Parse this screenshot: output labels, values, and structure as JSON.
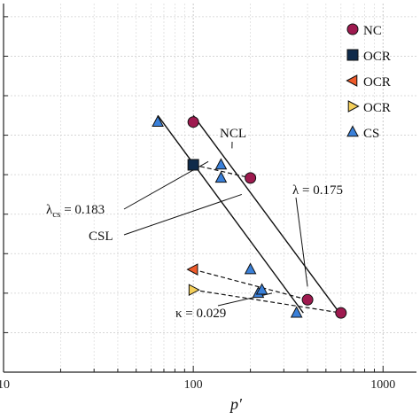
{
  "chart_data": {
    "type": "scatter",
    "x_scale": "log",
    "xlim": [
      10,
      1500
    ],
    "ylim": [
      1.6,
      2.16
    ],
    "grid": true,
    "legend_placement": "top-right",
    "xlabel": "p′",
    "ylabel": "",
    "x_ticks": [
      {
        "value": 10,
        "label": "10"
      },
      {
        "value": 100,
        "label": "100"
      },
      {
        "value": 1000,
        "label": "1000"
      }
    ],
    "series": [
      {
        "name": "NC",
        "marker": "circle",
        "color": "#9e1a4f",
        "points": [
          [
            100,
            1.98
          ],
          [
            200,
            1.895
          ],
          [
            400,
            1.71
          ],
          [
            600,
            1.69
          ]
        ]
      },
      {
        "name": "OCR",
        "marker": "square",
        "color": "#0f2a4a",
        "points": [
          [
            100,
            1.915
          ]
        ]
      },
      {
        "name": "OCR",
        "marker": "triangle-left",
        "color": "#ef5a2a",
        "points": [
          [
            100,
            1.756
          ]
        ]
      },
      {
        "name": "OCR",
        "marker": "triangle-right",
        "color": "#f4cf5a",
        "points": [
          [
            100,
            1.725
          ]
        ]
      },
      {
        "name": "CS",
        "marker": "triangle-up",
        "color": "#3a80d9",
        "points": [
          [
            65,
            1.98
          ],
          [
            140,
            1.915
          ],
          [
            140,
            1.895
          ],
          [
            200,
            1.756
          ],
          [
            220,
            1.72
          ],
          [
            230,
            1.725
          ],
          [
            350,
            1.69
          ]
        ]
      }
    ],
    "lines": [
      {
        "id": "NCL",
        "style": "solid",
        "points": [
          [
            100,
            1.99
          ],
          [
            600,
            1.687
          ]
        ]
      },
      {
        "id": "CSL",
        "style": "solid",
        "points": [
          [
            65,
            1.99
          ],
          [
            380,
            1.69
          ]
        ]
      },
      {
        "id": "unload-1",
        "style": "dashed",
        "points": [
          [
            100,
            1.915
          ],
          [
            200,
            1.895
          ]
        ]
      },
      {
        "id": "unload-2",
        "style": "dashed",
        "points": [
          [
            100,
            1.756
          ],
          [
            400,
            1.71
          ]
        ]
      },
      {
        "id": "unload-3",
        "style": "dashed",
        "points": [
          [
            100,
            1.725
          ],
          [
            600,
            1.69
          ]
        ]
      }
    ],
    "annotations": [
      {
        "id": "ncl",
        "text": "NCL"
      },
      {
        "id": "lambda",
        "text": "λ = 0.175"
      },
      {
        "id": "lambda-cs",
        "symbol": "λ",
        "subscript": "cs",
        "text": " = 0.183"
      },
      {
        "id": "csl",
        "text": "CSL"
      },
      {
        "id": "kappa",
        "text": "κ = 0.029"
      }
    ],
    "legend": [
      {
        "label": "NC"
      },
      {
        "label": "OCR"
      },
      {
        "label": "OCR"
      },
      {
        "label": "OCR"
      },
      {
        "label": "CS"
      }
    ]
  }
}
